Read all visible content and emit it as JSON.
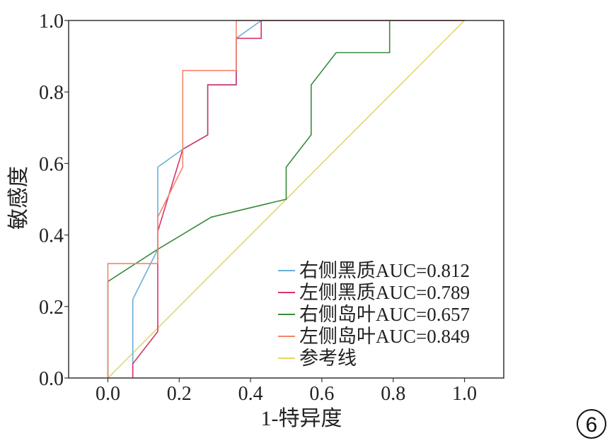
{
  "chart_data": {
    "type": "line",
    "xlabel": "1-特异度",
    "ylabel": "敏感度",
    "xlim": [
      -0.11,
      1.11
    ],
    "ylim": [
      0.0,
      1.0
    ],
    "x_ticks": [
      "0.0",
      "0.2",
      "0.4",
      "0.6",
      "0.8",
      "1.0"
    ],
    "y_ticks": [
      "0.0",
      "0.2",
      "0.4",
      "0.6",
      "0.8",
      "1.0"
    ],
    "grid": false,
    "legend_position": "lower-right",
    "series": [
      {
        "name": "右侧黑质AUC=0.812",
        "color": "#6aaed6",
        "x": [
          0.07,
          0.07,
          0.14,
          0.14,
          0.21,
          0.28,
          0.28,
          0.36,
          0.36,
          0.43,
          1.0
        ],
        "y": [
          0.0,
          0.22,
          0.36,
          0.59,
          0.64,
          0.68,
          0.82,
          0.82,
          0.95,
          1.0,
          1.0
        ]
      },
      {
        "name": "左侧黑质AUC=0.789",
        "color": "#d6336c",
        "x": [
          0.07,
          0.07,
          0.14,
          0.14,
          0.21,
          0.28,
          0.28,
          0.36,
          0.36,
          0.43,
          0.43,
          1.0
        ],
        "y": [
          0.0,
          0.04,
          0.13,
          0.41,
          0.64,
          0.68,
          0.82,
          0.82,
          0.95,
          0.95,
          1.0,
          1.0
        ]
      },
      {
        "name": "右侧岛叶AUC=0.657",
        "color": "#3a8a3a",
        "x": [
          0.0,
          0.0,
          0.14,
          0.29,
          0.5,
          0.5,
          0.57,
          0.57,
          0.64,
          0.79,
          0.79,
          1.0
        ],
        "y": [
          0.0,
          0.27,
          0.36,
          0.45,
          0.5,
          0.59,
          0.68,
          0.82,
          0.91,
          0.91,
          1.0,
          1.0
        ]
      },
      {
        "name": "左侧岛叶AUC=0.849",
        "color": "#f4866a",
        "x": [
          0.0,
          0.0,
          0.14,
          0.14,
          0.21,
          0.21,
          0.36,
          0.36,
          1.0
        ],
        "y": [
          0.0,
          0.32,
          0.32,
          0.45,
          0.59,
          0.86,
          0.86,
          1.0,
          1.0
        ]
      },
      {
        "name": "参考线",
        "color": "#e0d86a",
        "x": [
          0.0,
          1.0
        ],
        "y": [
          0.0,
          1.0
        ]
      }
    ]
  },
  "panel_label": "6"
}
